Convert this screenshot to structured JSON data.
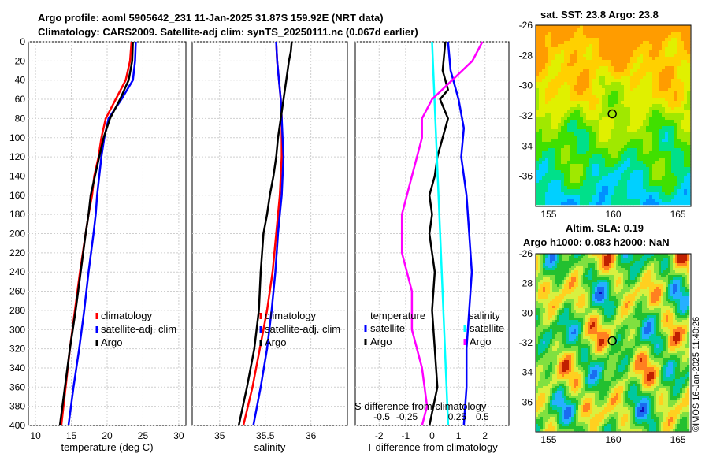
{
  "header": {
    "title_line1": "Argo profile: aoml 5905642_231 11-Jan-2025 31.87S 159.92E (NRT data)",
    "title_line2": "Climatology: CARS2009. Satellite-adj clim: synTS_20250111.nc (0.067d earlier)"
  },
  "sst_map": {
    "title": "sat. SST: 23.8 Argo: 23.8"
  },
  "sla_map": {
    "title_line1": "Altim. SLA: 0.19",
    "title_line2": "Argo h1000: 0.083 h2000: NaN"
  },
  "copyright": "©IMOS 16-Jan-2025 11:40:26",
  "chart_data": [
    {
      "type": "line",
      "name": "temperature_profile",
      "xlabel": "temperature (deg C)",
      "ylabel": "",
      "xlim": [
        9,
        31
      ],
      "ylim": [
        400,
        0
      ],
      "xticks": [
        10,
        15,
        20,
        25,
        30
      ],
      "yticks": [
        0,
        20,
        40,
        60,
        80,
        100,
        120,
        140,
        160,
        180,
        200,
        220,
        240,
        260,
        280,
        300,
        320,
        340,
        360,
        380,
        400
      ],
      "grid": true,
      "legend": [
        "climatology",
        "satellite-adj. clim",
        "Argo"
      ],
      "series": [
        {
          "name": "climatology",
          "color": "#ff0000",
          "depth": [
            0,
            20,
            40,
            60,
            80,
            100,
            120,
            140,
            160,
            180,
            200,
            240,
            280,
            320,
            360,
            400
          ],
          "values": [
            23.4,
            23.2,
            22.6,
            21.2,
            19.8,
            19.2,
            18.8,
            18.2,
            17.9,
            17.4,
            17.0,
            16.2,
            15.5,
            14.8,
            14.2,
            13.6
          ]
        },
        {
          "name": "satellite-adj. clim",
          "color": "#0000ff",
          "depth": [
            0,
            20,
            40,
            60,
            80,
            100,
            120,
            140,
            160,
            180,
            200,
            240,
            280,
            320,
            360,
            400
          ],
          "values": [
            24.0,
            23.9,
            23.6,
            22.0,
            20.2,
            19.6,
            19.2,
            18.9,
            18.6,
            18.4,
            18.1,
            17.4,
            16.8,
            16.1,
            15.3,
            14.6
          ]
        },
        {
          "name": "Argo",
          "color": "#000000",
          "depth": [
            0,
            20,
            40,
            60,
            80,
            100,
            120,
            140,
            160,
            180,
            200,
            240,
            280,
            320,
            360,
            400
          ],
          "values": [
            23.6,
            23.5,
            23.0,
            21.8,
            20.4,
            19.5,
            18.9,
            18.3,
            17.7,
            17.4,
            17.0,
            16.3,
            15.6,
            14.8,
            14.1,
            13.4
          ]
        }
      ]
    },
    {
      "type": "line",
      "name": "salinity_profile",
      "xlabel": "salinity",
      "xlim": [
        34.7,
        36.4
      ],
      "ylim": [
        400,
        0
      ],
      "xticks": [
        35,
        35.5,
        36
      ],
      "grid": true,
      "legend": [
        "climatology",
        "satellite-adj. clim",
        "Argo"
      ],
      "series": [
        {
          "name": "climatology",
          "color": "#ff0000",
          "depth": [
            0,
            20,
            40,
            60,
            80,
            100,
            120,
            140,
            160,
            180,
            200,
            240,
            280,
            320,
            360,
            400
          ],
          "values": [
            35.62,
            35.63,
            35.65,
            35.67,
            35.68,
            35.68,
            35.68,
            35.67,
            35.66,
            35.64,
            35.62,
            35.58,
            35.52,
            35.44,
            35.36,
            35.26
          ]
        },
        {
          "name": "satellite-adj. clim",
          "color": "#0000ff",
          "depth": [
            0,
            20,
            40,
            60,
            80,
            100,
            120,
            140,
            160,
            180,
            200,
            240,
            280,
            320,
            360,
            400
          ],
          "values": [
            35.62,
            35.63,
            35.65,
            35.67,
            35.68,
            35.69,
            35.7,
            35.69,
            35.68,
            35.66,
            35.64,
            35.61,
            35.57,
            35.52,
            35.45,
            35.37
          ]
        },
        {
          "name": "Argo",
          "color": "#000000",
          "depth": [
            0,
            10,
            20,
            40,
            60,
            80,
            100,
            120,
            140,
            160,
            180,
            200,
            240,
            280,
            320,
            360,
            400
          ],
          "values": [
            35.79,
            35.78,
            35.76,
            35.73,
            35.7,
            35.67,
            35.64,
            35.62,
            35.59,
            35.55,
            35.52,
            35.48,
            35.45,
            35.43,
            35.38,
            35.3,
            35.21
          ]
        }
      ]
    },
    {
      "type": "line",
      "name": "difference_profile",
      "xlabel": "T difference from climatology",
      "x2label": "S difference from climatology",
      "xlim": [
        -2.9,
        2.9
      ],
      "ylim": [
        400,
        0
      ],
      "xticks": [
        -2,
        -1,
        0,
        1,
        2
      ],
      "x2ticks": [
        -0.5,
        -0.25,
        0,
        0.25,
        0.5
      ],
      "grid": true,
      "legend_left_title": "temperature",
      "legend_left": [
        "satellite",
        "Argo"
      ],
      "legend_right_title": "salinity",
      "legend_right": [
        "satellite",
        "Argo"
      ],
      "series": [
        {
          "name": "temperature satellite",
          "color": "#0000ff",
          "depth": [
            0,
            30,
            60,
            90,
            120,
            160,
            200,
            240,
            280,
            320,
            360,
            400
          ],
          "values": [
            0.6,
            0.7,
            1.0,
            1.2,
            1.1,
            1.3,
            1.4,
            1.5,
            1.4,
            1.3,
            1.3,
            1.2
          ]
        },
        {
          "name": "temperature Argo",
          "color": "#000000",
          "depth": [
            0,
            30,
            50,
            60,
            80,
            100,
            120,
            140,
            160,
            180,
            200,
            240,
            280,
            320,
            360,
            400
          ],
          "values": [
            0.5,
            0.4,
            0.6,
            0.3,
            0.6,
            0.4,
            0.2,
            0.1,
            -0.1,
            0.0,
            -0.1,
            0.1,
            0.0,
            0.1,
            0.2,
            -0.1
          ]
        },
        {
          "name": "salinity satellite",
          "color": "#00ffff",
          "depth": [
            0,
            100,
            200,
            300,
            400
          ],
          "values": [
            0.0,
            0.04,
            0.08,
            0.12,
            0.16
          ]
        },
        {
          "name": "salinity Argo",
          "color": "#ff00ff",
          "depth": [
            0,
            20,
            40,
            60,
            80,
            100,
            140,
            180,
            220,
            260,
            300,
            340,
            380,
            400
          ],
          "values": [
            0.5,
            0.4,
            0.2,
            0.0,
            -0.1,
            -0.1,
            -0.2,
            -0.3,
            -0.3,
            -0.2,
            -0.2,
            -0.1,
            -0.05,
            -0.1
          ]
        }
      ]
    },
    {
      "type": "heatmap",
      "name": "sst_map",
      "title": "sat. SST: 23.8 Argo: 23.8",
      "xlim": [
        154,
        166
      ],
      "ylim": [
        -38,
        -26
      ],
      "xticks": [
        155,
        160,
        165
      ],
      "yticks": [
        -26,
        -28,
        -30,
        -32,
        -34,
        -36
      ],
      "marker": {
        "lon": 159.92,
        "lat": -31.87
      }
    },
    {
      "type": "heatmap",
      "name": "sla_map",
      "title": "Altim. SLA: 0.19",
      "xlim": [
        154,
        166
      ],
      "ylim": [
        -38,
        -26
      ],
      "xticks": [
        155,
        160,
        165
      ],
      "yticks": [
        -26,
        -28,
        -30,
        -32,
        -34,
        -36
      ],
      "marker": {
        "lon": 159.92,
        "lat": -31.87
      }
    }
  ]
}
